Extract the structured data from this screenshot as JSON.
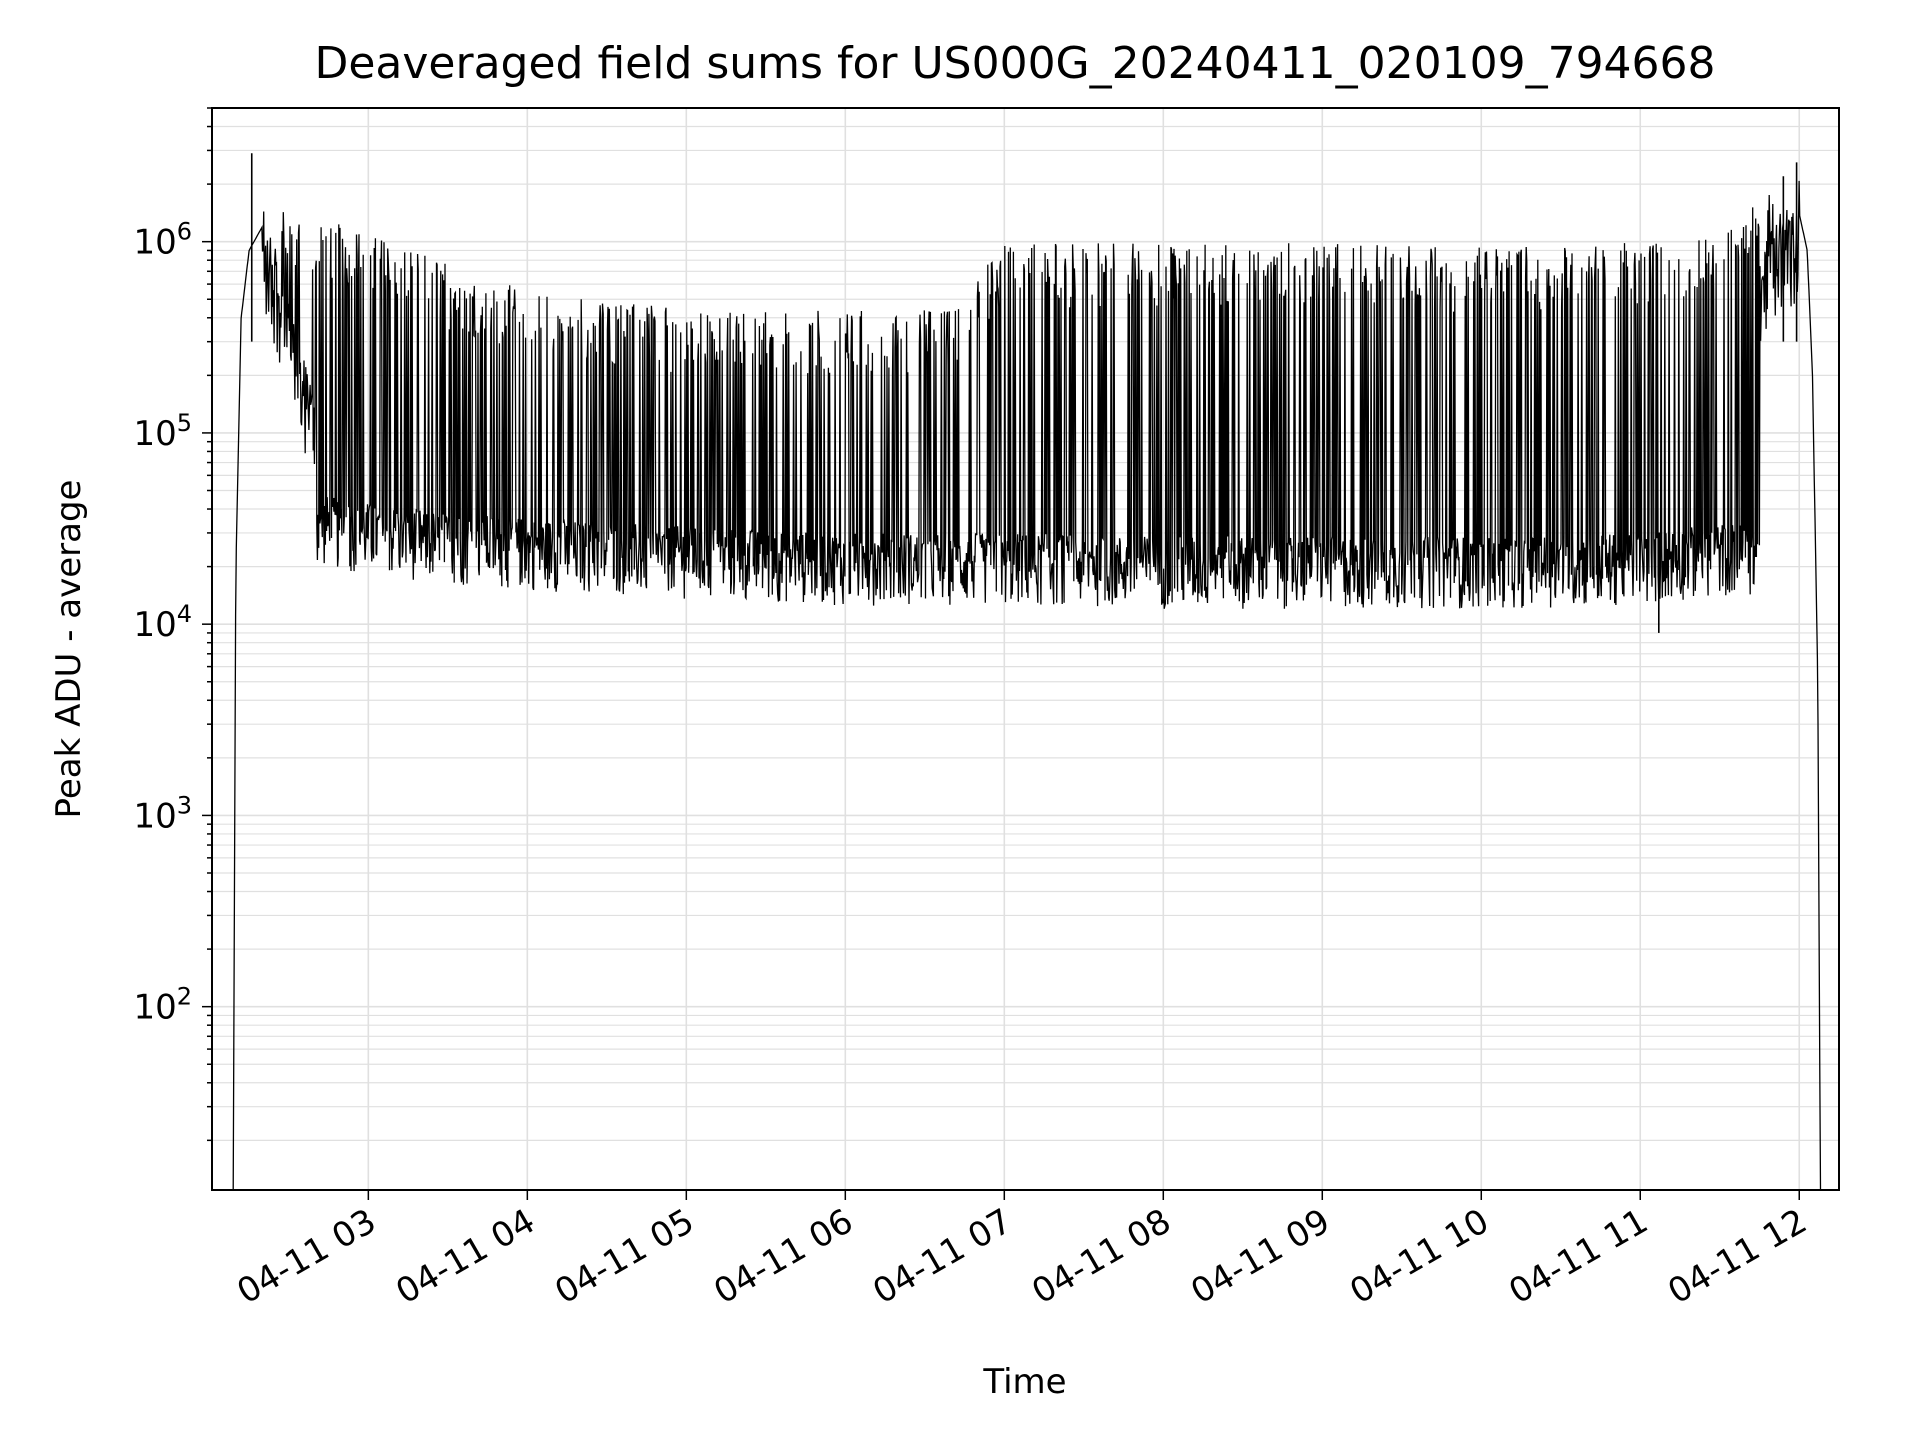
{
  "chart_data": {
    "type": "line",
    "title": "Deaveraged field sums for US000G_20240411_020109_794668",
    "xlabel": "Time",
    "ylabel": "Peak ADU - average",
    "yscale": "log",
    "grid": true,
    "line_color": "#000000",
    "grid_color": "#e0e0e0",
    "xlim": [
      "04-11 02:01",
      "04-11 12:15"
    ],
    "ylim": [
      11,
      5000000
    ],
    "x_ticks": [
      "04-11 03",
      "04-11 04",
      "04-11 05",
      "04-11 06",
      "04-11 07",
      "04-11 08",
      "04-11 09",
      "04-11 10",
      "04-11 11",
      "04-11 12"
    ],
    "y_ticks": [
      {
        "base": "10",
        "exp": "2",
        "value": 100
      },
      {
        "base": "10",
        "exp": "3",
        "value": 1000
      },
      {
        "base": "10",
        "exp": "4",
        "value": 10000
      },
      {
        "base": "10",
        "exp": "5",
        "value": 100000
      },
      {
        "base": "10",
        "exp": "6",
        "value": 1000000
      }
    ],
    "series": [
      {
        "name": "",
        "x": [
          "04-11 02:09",
          "04-11 02:10",
          "04-11 02:12",
          "04-11 02:15",
          "04-11 02:20",
          "04-11 02:25",
          "04-11 02:30",
          "04-11 02:40",
          "04-11 02:50",
          "04-11 03:00",
          "04-11 03:15",
          "04-11 03:30",
          "04-11 03:45",
          "04-11 04:00",
          "04-11 04:30",
          "04-11 05:00",
          "04-11 05:30",
          "04-11 06:00",
          "04-11 06:30",
          "04-11 07:00",
          "04-11 07:30",
          "04-11 08:00",
          "04-11 08:30",
          "04-11 09:00",
          "04-11 09:30",
          "04-11 10:00",
          "04-11 10:30",
          "04-11 11:00",
          "04-11 11:20",
          "04-11 11:30",
          "04-11 11:35",
          "04-11 11:40",
          "04-11 11:45",
          "04-11 11:50",
          "04-11 11:55",
          "04-11 12:00",
          "04-11 12:03",
          "04-11 12:05",
          "04-11 12:07",
          "04-11 12:08"
        ],
        "y": [
          11,
          20000,
          400000,
          900000,
          1200000,
          900000,
          500000,
          150000,
          60000,
          40000,
          30000,
          28000,
          26000,
          24000,
          22000,
          21000,
          20000,
          19000,
          18500,
          18000,
          17500,
          17000,
          17000,
          17000,
          17000,
          17500,
          18000,
          20000,
          25000,
          40000,
          100000,
          400000,
          900000,
          1300000,
          1500000,
          1400000,
          900000,
          200000,
          5000,
          11
        ],
        "upper_envelope": {
          "x": [
            "04-11 02:20",
            "04-11 02:35",
            "04-11 03:00",
            "04-11 03:30",
            "04-11 04:00",
            "04-11 05:00",
            "04-11 06:00",
            "04-11 06:40",
            "04-11 07:00",
            "04-11 08:00",
            "04-11 09:00",
            "04-11 10:00",
            "04-11 11:00",
            "04-11 11:30",
            "04-11 11:45",
            "04-11 12:00"
          ],
          "y": [
            1400000,
            1300000,
            1000000,
            700000,
            500000,
            400000,
            400000,
            400000,
            900000,
            900000,
            900000,
            850000,
            900000,
            950000,
            1500000,
            2000000
          ]
        },
        "lower_envelope": {
          "x": [
            "04-11 02:40",
            "04-11 03:00",
            "04-11 03:30",
            "04-11 04:00",
            "04-11 05:00",
            "04-11 06:00",
            "04-11 07:00",
            "04-11 08:00",
            "04-11 09:00",
            "04-11 10:00",
            "04-11 11:00",
            "04-11 11:30"
          ],
          "y": [
            20000,
            18000,
            16000,
            15000,
            13500,
            12500,
            12500,
            12000,
            12000,
            12000,
            12500,
            14000
          ]
        },
        "peaks": [
          {
            "x": "04-11 02:16",
            "y": 2900000
          },
          {
            "x": "04-11 11:59",
            "y": 2600000
          },
          {
            "x": "04-11 11:54",
            "y": 2200000
          }
        ],
        "min_point": {
          "x": "04-11 11:07",
          "y": 9000
        }
      }
    ]
  }
}
